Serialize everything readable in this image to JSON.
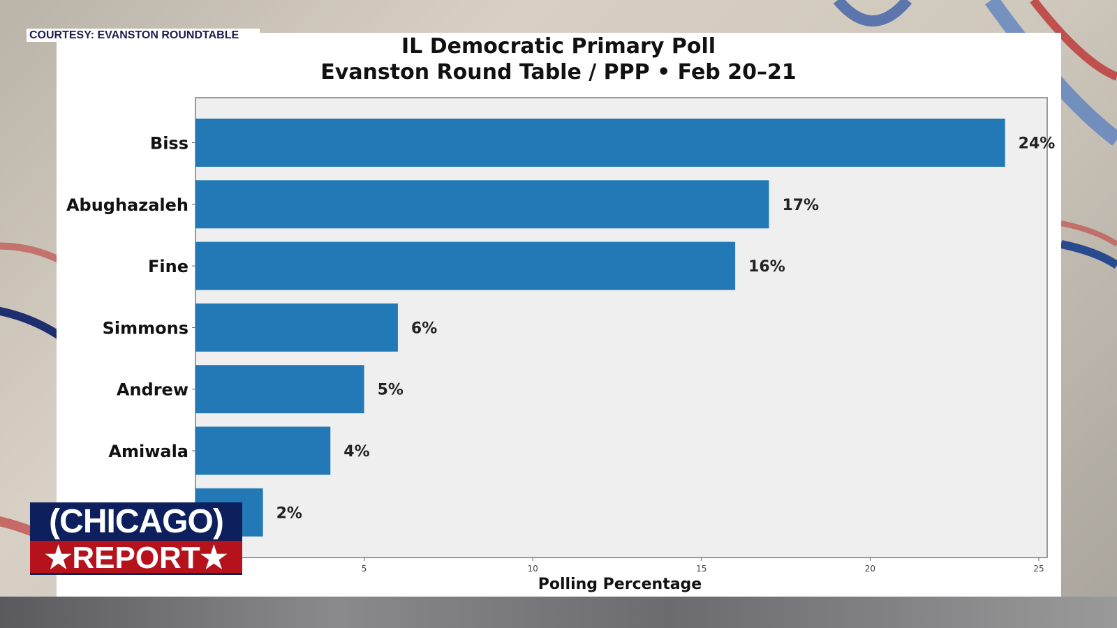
{
  "courtesy": "COURTESY: EVANSTON ROUNDTABLE",
  "logo": {
    "line1": "(CHICAGO)",
    "line2": "★REPORT★"
  },
  "chart_data": {
    "type": "bar",
    "orientation": "horizontal",
    "title": "IL Democratic Primary Poll",
    "subtitle": "Evanston Round Table / PPP • Feb 20–21",
    "xlabel": "Polling Percentage",
    "ylabel": "",
    "categories": [
      "Biss",
      "Abughazaleh",
      "Fine",
      "Simmons",
      "Andrew",
      "Amiwala",
      ""
    ],
    "values": [
      24,
      17,
      16,
      6,
      5,
      4,
      2
    ],
    "data_labels": [
      "24%",
      "17%",
      "16%",
      "6%",
      "5%",
      "4%",
      "2%"
    ],
    "xlim": [
      0,
      25
    ],
    "xticks": [
      "5",
      "10",
      "15",
      "20",
      "25"
    ],
    "xtick_values": [
      5,
      10,
      15,
      20,
      25
    ],
    "bar_color": "#2279b5",
    "plot_background": "#efefef",
    "grid": false
  }
}
